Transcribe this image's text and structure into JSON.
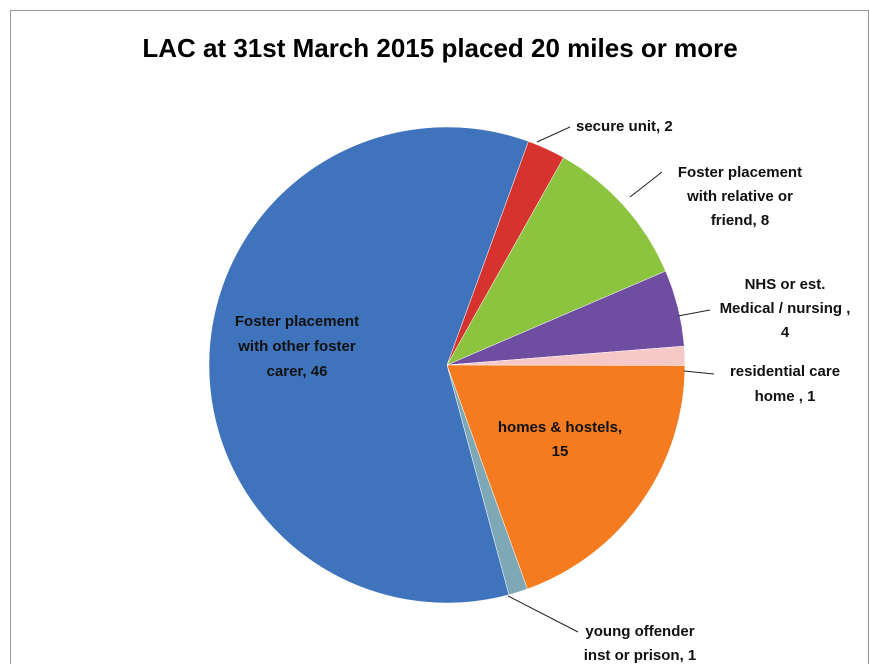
{
  "chart_data": {
    "type": "pie",
    "title": "LAC at 31st March 2015 placed 20 miles or more",
    "values": [
      2,
      8,
      4,
      1,
      15,
      1,
      46
    ],
    "value_labels": [
      [
        "secure unit, 2"
      ],
      [
        "Foster placement",
        "with relative or",
        "friend, 8"
      ],
      [
        "NHS or est.",
        "Medical / nursing ,",
        "4"
      ],
      [
        "residential care",
        "home , 1"
      ],
      [
        "homes & hostels,",
        "15"
      ],
      [
        "young offender",
        "inst or prison, 1"
      ],
      [
        "Foster placement",
        "with other foster",
        "carer, 46"
      ]
    ],
    "colors": [
      "#d6332f",
      "#8cc43f",
      "#6f4ea2",
      "#f6c8c8",
      "#f47b20",
      "#7ea8b6",
      "#3f74bd"
    ]
  }
}
